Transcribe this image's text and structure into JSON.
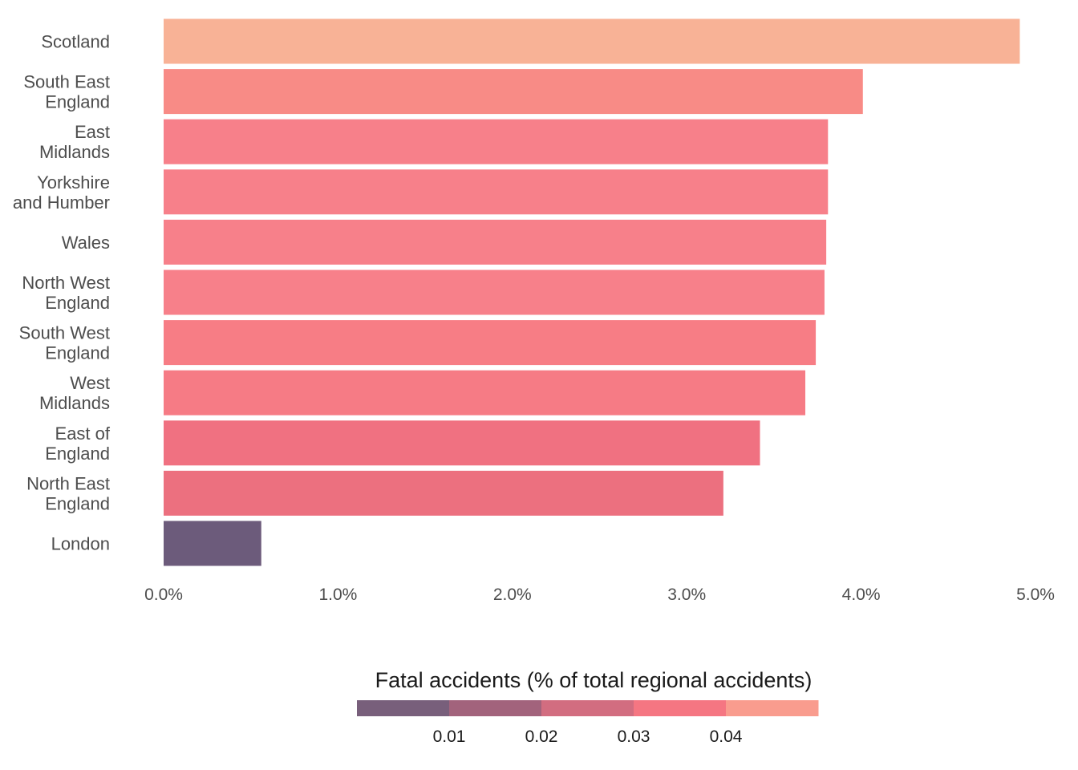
{
  "chart_data": {
    "type": "bar",
    "orientation": "horizontal",
    "categories": [
      [
        "Scotland"
      ],
      [
        "South East",
        "England"
      ],
      [
        "East",
        "Midlands"
      ],
      [
        "Yorkshire",
        "and Humber"
      ],
      [
        "Wales"
      ],
      [
        "North West",
        "England"
      ],
      [
        "South West",
        "England"
      ],
      [
        "West",
        "Midlands"
      ],
      [
        "East of",
        "England"
      ],
      [
        "North East",
        "England"
      ],
      [
        "London"
      ]
    ],
    "values": [
      4.91,
      4.01,
      3.81,
      3.81,
      3.8,
      3.79,
      3.74,
      3.68,
      3.42,
      3.21,
      0.56
    ],
    "colors": [
      "#f8b296",
      "#f88b86",
      "#f7808a",
      "#f7808a",
      "#f7808a",
      "#f7808a",
      "#f77d85",
      "#f67b85",
      "#f07181",
      "#ec707f",
      "#6c5b7b"
    ],
    "xlim": [
      0,
      5
    ],
    "xticks": [
      0,
      1,
      2,
      3,
      4,
      5
    ],
    "xtick_labels": [
      "0.0%",
      "1.0%",
      "2.0%",
      "3.0%",
      "4.0%",
      "5.0%"
    ],
    "title": "",
    "xlabel": "",
    "ylabel": "",
    "grid": false,
    "legend": {
      "title": "Fatal accidents (% of total regional accidents)",
      "placement": "bottom",
      "ticks": [
        "0.01",
        "0.02",
        "0.03",
        "0.04"
      ],
      "swatch_colors": [
        "#785f7b",
        "#a2637c",
        "#d26d80",
        "#f57682",
        "#f99c8e"
      ]
    }
  }
}
